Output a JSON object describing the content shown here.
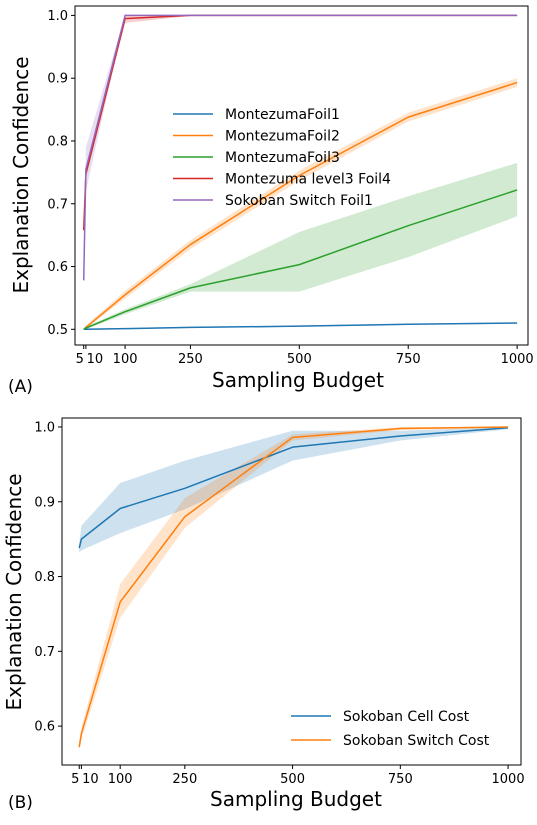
{
  "chart_data": [
    {
      "type": "line",
      "panel_label": "(A)",
      "xlabel": "Sampling Budget",
      "ylabel": "Explanation Confidence",
      "xlim": [
        -15,
        1025
      ],
      "ylim": [
        0.475,
        1.015
      ],
      "x_ticks": [
        5,
        10,
        100,
        250,
        500,
        750,
        1000
      ],
      "y_ticks": [
        0.5,
        0.6,
        0.7,
        0.8,
        0.9,
        1.0
      ],
      "x_tick_labels": [
        "5",
        "10",
        "100",
        "250",
        "500",
        "750",
        "1000"
      ],
      "y_tick_labels": [
        "0.5",
        "0.6",
        "0.7",
        "0.8",
        "0.9",
        "1.0"
      ],
      "legend_position": "center",
      "grid": false,
      "series": [
        {
          "name": "MontezumaFoil1",
          "color": "#1f77b4",
          "x": [
            5,
            10,
            100,
            250,
            500,
            750,
            1000
          ],
          "y": [
            0.5,
            0.5,
            0.501,
            0.503,
            0.505,
            0.508,
            0.51
          ],
          "lower": [
            0.499,
            0.499,
            0.5,
            0.502,
            0.504,
            0.507,
            0.509
          ],
          "upper": [
            0.501,
            0.501,
            0.502,
            0.504,
            0.506,
            0.509,
            0.511
          ]
        },
        {
          "name": "MontezumaFoil2",
          "color": "#ff7f0e",
          "x": [
            5,
            10,
            100,
            250,
            500,
            750,
            1000
          ],
          "y": [
            0.5,
            0.503,
            0.555,
            0.635,
            0.745,
            0.838,
            0.893
          ],
          "lower": [
            0.499,
            0.501,
            0.549,
            0.628,
            0.737,
            0.831,
            0.886
          ],
          "upper": [
            0.501,
            0.506,
            0.561,
            0.642,
            0.753,
            0.845,
            0.9
          ]
        },
        {
          "name": "MontezumaFoil3",
          "color": "#2ca02c",
          "x": [
            5,
            10,
            100,
            250,
            500,
            750,
            1000
          ],
          "y": [
            0.5,
            0.502,
            0.528,
            0.566,
            0.603,
            0.665,
            0.722
          ],
          "lower": [
            0.499,
            0.5,
            0.524,
            0.56,
            0.56,
            0.615,
            0.68
          ],
          "upper": [
            0.501,
            0.504,
            0.532,
            0.572,
            0.655,
            0.712,
            0.765
          ]
        },
        {
          "name": "Montezuma level3 Foil4",
          "color": "#d62728",
          "x": [
            5,
            10,
            100,
            250,
            500,
            750,
            1000
          ],
          "y": [
            0.658,
            0.748,
            0.995,
            1.0,
            1.0,
            1.0,
            1.0
          ],
          "lower": [
            0.655,
            0.74,
            0.988,
            0.999,
            1.0,
            1.0,
            1.0
          ],
          "upper": [
            0.662,
            0.756,
            1.0,
            1.0,
            1.0,
            1.0,
            1.0
          ]
        },
        {
          "name": "Sokoban Switch Foil1",
          "color": "#9467bd",
          "x": [
            5,
            10,
            100,
            250,
            500,
            750,
            1000
          ],
          "y": [
            0.578,
            0.755,
            1.0,
            1.0,
            1.0,
            1.0,
            1.0
          ],
          "lower": [
            0.575,
            0.72,
            1.0,
            1.0,
            1.0,
            1.0,
            1.0
          ],
          "upper": [
            0.582,
            0.79,
            1.0,
            1.0,
            1.0,
            1.0,
            1.0
          ]
        }
      ]
    },
    {
      "type": "line",
      "panel_label": "(B)",
      "xlabel": "Sampling Budget",
      "ylabel": "Explanation Confidence",
      "xlim": [
        -35,
        1030
      ],
      "ylim": [
        0.548,
        1.012
      ],
      "x_ticks": [
        5,
        10,
        100,
        250,
        500,
        750,
        1000
      ],
      "y_ticks": [
        0.6,
        0.7,
        0.8,
        0.9,
        1.0
      ],
      "x_tick_labels": [
        "5",
        "10",
        "100",
        "250",
        "500",
        "750",
        "1000"
      ],
      "y_tick_labels": [
        "0.6",
        "0.7",
        "0.8",
        "0.9",
        "1.0"
      ],
      "legend_position": "lower right",
      "grid": false,
      "series": [
        {
          "name": "Sokoban Cell Cost",
          "color": "#1f77b4",
          "x": [
            5,
            10,
            100,
            250,
            500,
            750,
            1000
          ],
          "y": [
            0.838,
            0.85,
            0.891,
            0.918,
            0.973,
            0.988,
            0.999
          ],
          "lower": [
            0.832,
            0.835,
            0.858,
            0.89,
            0.955,
            0.982,
            0.997
          ],
          "upper": [
            0.845,
            0.868,
            0.925,
            0.955,
            0.995,
            0.995,
            1.0
          ]
        },
        {
          "name": "Sokoban Switch Cost",
          "color": "#ff7f0e",
          "x": [
            5,
            10,
            100,
            250,
            500,
            750,
            1000
          ],
          "y": [
            0.572,
            0.59,
            0.766,
            0.88,
            0.986,
            0.998,
            1.0
          ],
          "lower": [
            0.566,
            0.582,
            0.745,
            0.865,
            0.982,
            0.996,
            0.999
          ],
          "upper": [
            0.578,
            0.598,
            0.79,
            0.905,
            0.99,
            1.0,
            1.0
          ]
        }
      ]
    }
  ]
}
